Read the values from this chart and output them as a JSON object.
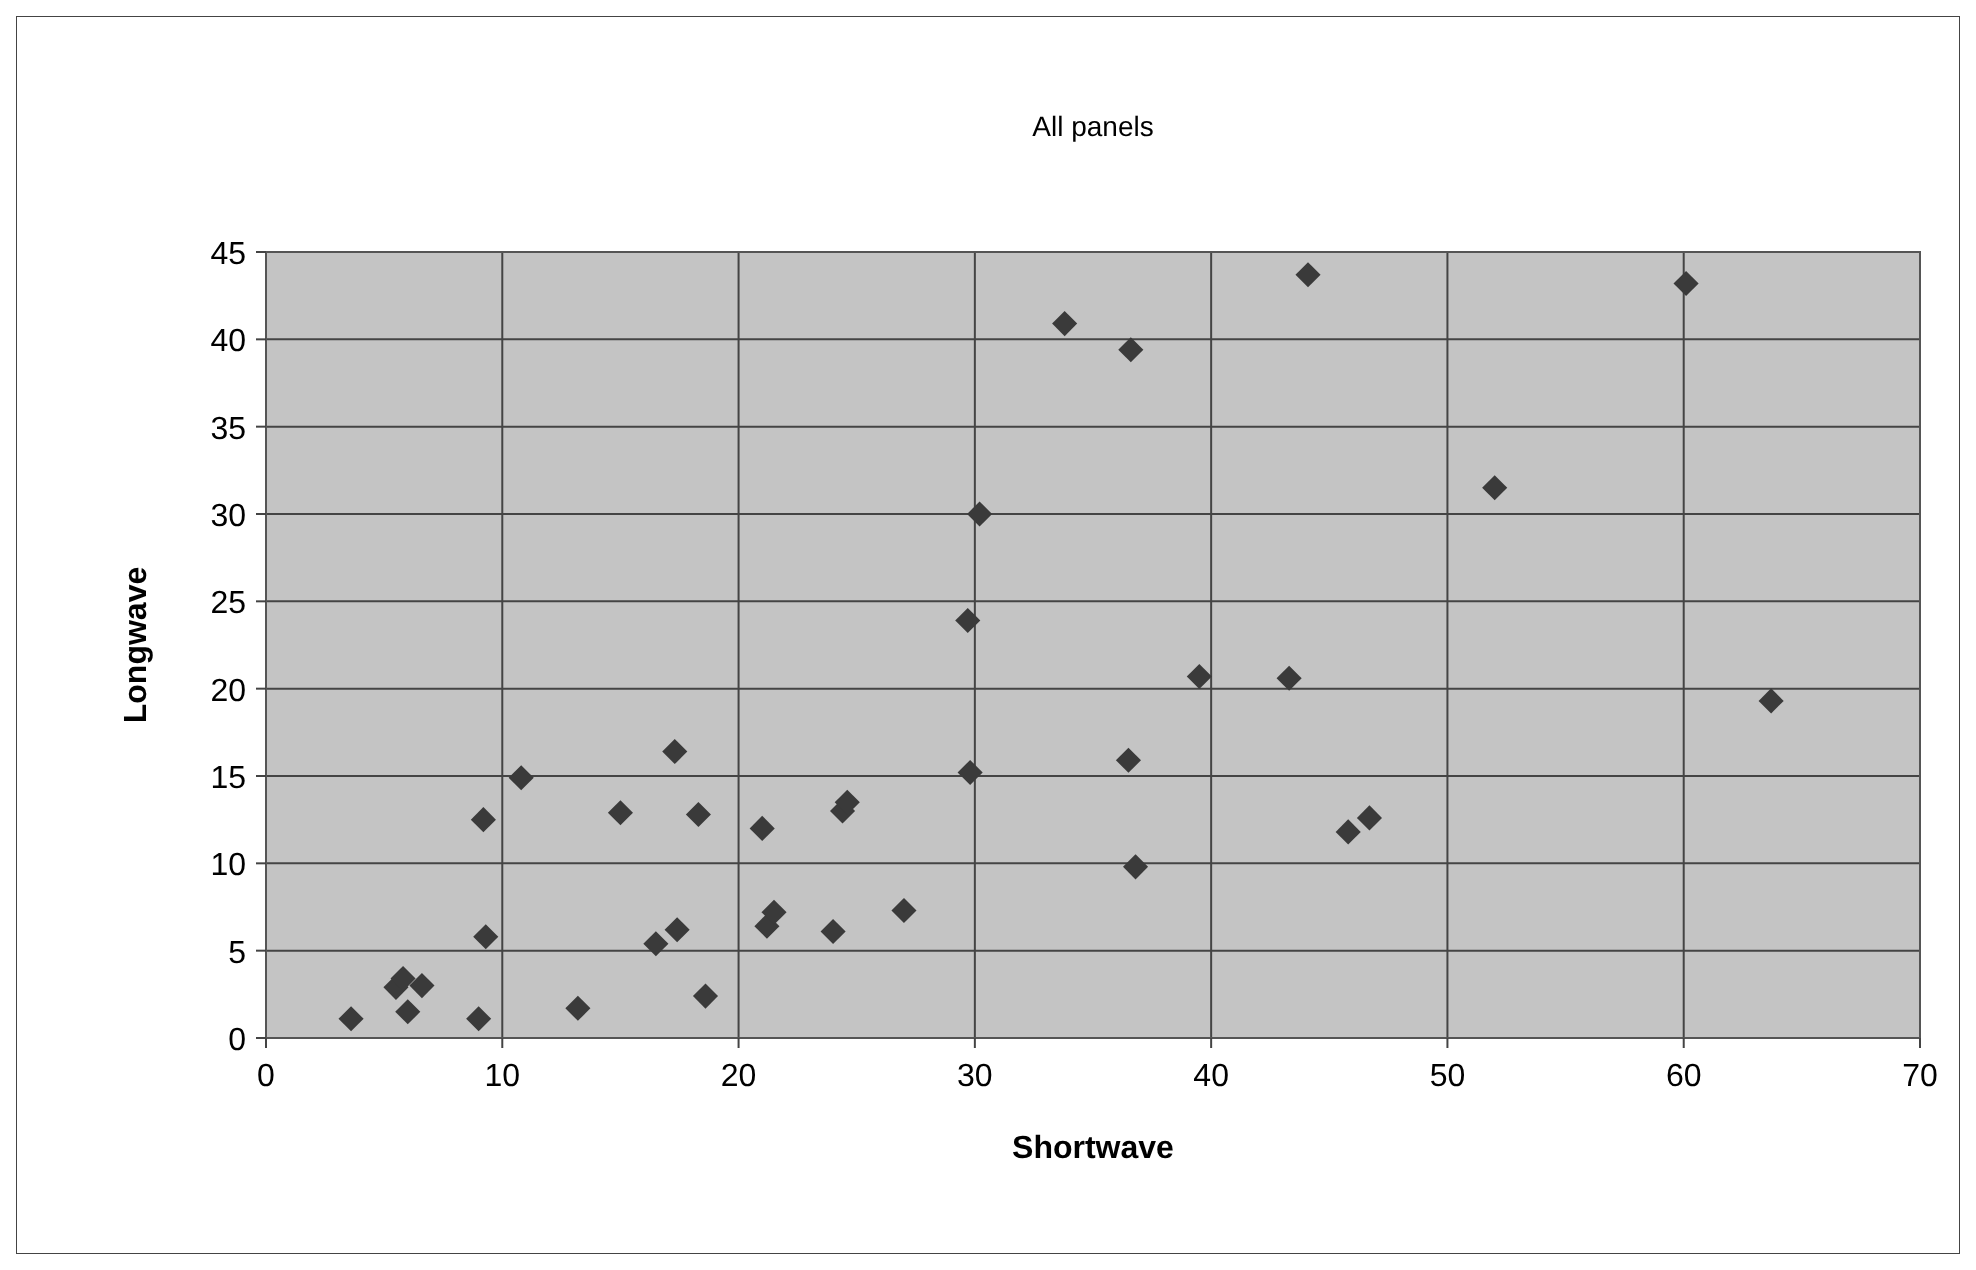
{
  "chart_data": {
    "type": "scatter",
    "title": "All panels",
    "xlabel": "Shortwave",
    "ylabel": "Longwave",
    "x": [
      3.6,
      5.5,
      5.8,
      6.6,
      6,
      9,
      9.3,
      9.2,
      10.8,
      13.2,
      15,
      16.5,
      17.4,
      17.3,
      18.3,
      18.6,
      21,
      21.2,
      21.5,
      24,
      24.4,
      24.6,
      27,
      29.7,
      29.8,
      30.2,
      33.8,
      36.6,
      36.5,
      36.8,
      39.5,
      43.3,
      44.1,
      45.8,
      46.7,
      52,
      60.1,
      63.7
    ],
    "series": [
      {
        "color": "#3a3a3a",
        "values": [
          1.1,
          2.9,
          3.4,
          3,
          1.5,
          1.1,
          5.8,
          12.5,
          14.9,
          1.7,
          12.9,
          5.4,
          6.2,
          16.4,
          12.8,
          2.4,
          12,
          6.4,
          7.2,
          6.1,
          13,
          13.5,
          7.3,
          23.9,
          15.2,
          30,
          40.9,
          39.4,
          15.9,
          9.8,
          20.7,
          20.6,
          43.7,
          11.8,
          12.6,
          31.5,
          43.2,
          19.3
        ]
      }
    ],
    "xlim": [
      0,
      70
    ],
    "xticks": [
      0,
      10,
      20,
      30,
      40,
      50,
      60,
      70
    ],
    "ylim": [
      0,
      45
    ],
    "yticks": [
      0,
      5,
      10,
      15,
      20,
      25,
      30,
      35,
      40,
      45
    ],
    "grid": true,
    "marker": "diamond"
  }
}
